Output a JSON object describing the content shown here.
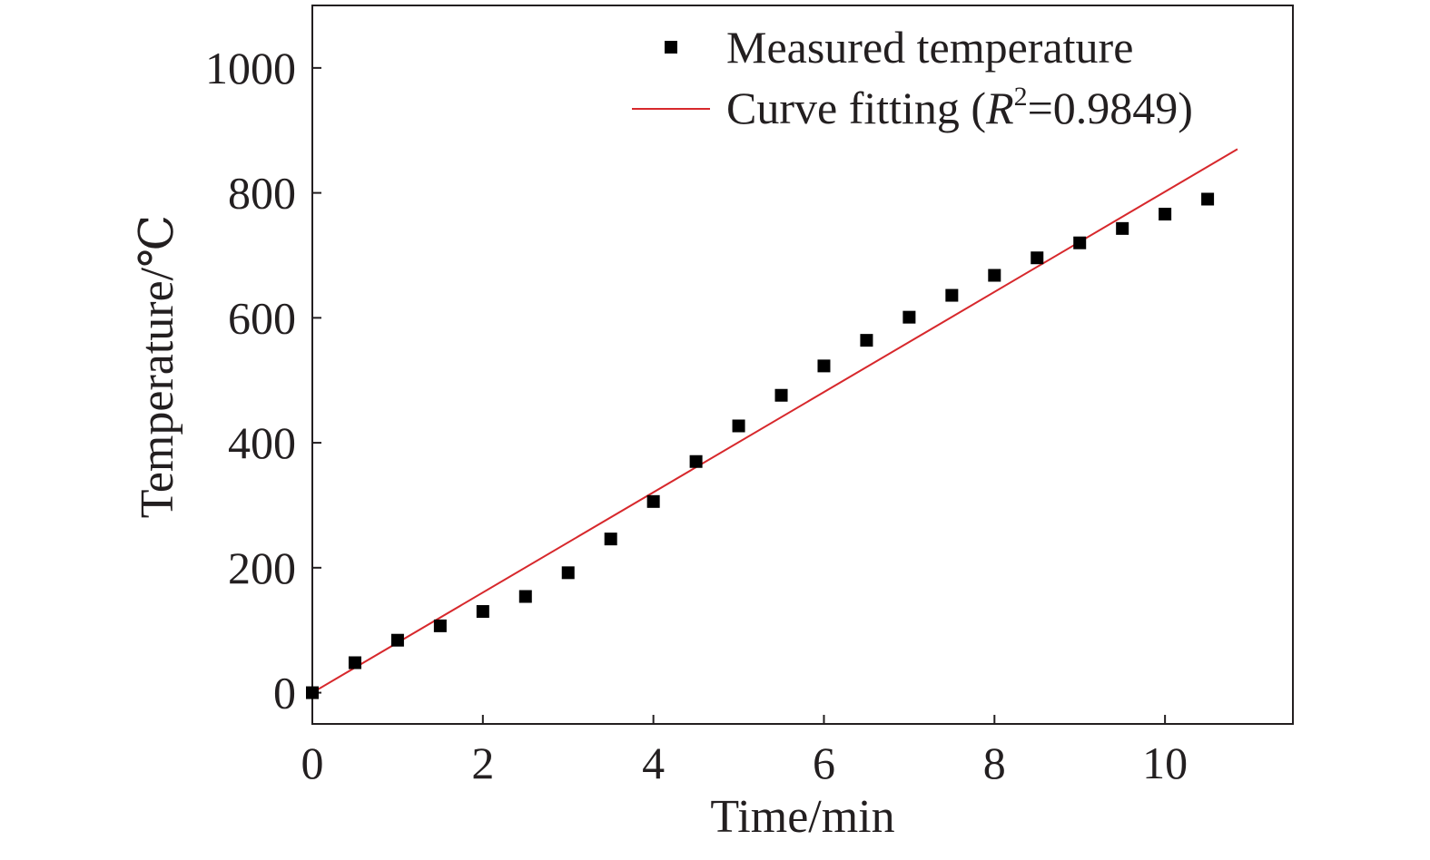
{
  "chart_data": {
    "type": "scatter",
    "xlabel": "Time/min",
    "ylabel": "Temperature/℃",
    "xlim": [
      0,
      11.5
    ],
    "ylim": [
      -50,
      1100
    ],
    "xticks": [
      0,
      2,
      4,
      6,
      8,
      10
    ],
    "yticks": [
      0,
      200,
      400,
      600,
      800,
      1000
    ],
    "grid": false,
    "legend_position": "top-right",
    "series": [
      {
        "name": "Measured temperature",
        "kind": "scatter",
        "marker": "square",
        "color": "#000000",
        "x": [
          0,
          0.5,
          1,
          1.5,
          2,
          2.5,
          3,
          3.5,
          4,
          4.5,
          5,
          5.5,
          6,
          6.5,
          7,
          7.5,
          8,
          8.5,
          9,
          9.5,
          10,
          10.5
        ],
        "y": [
          0,
          48,
          84,
          107,
          130,
          154,
          192,
          246,
          306,
          370,
          427,
          476,
          523,
          564,
          601,
          636,
          668,
          696,
          720,
          743,
          766,
          790
        ]
      },
      {
        "name": "Curve fitting",
        "name_suffix_r2": "0.9849",
        "kind": "line",
        "color": "#d7282c",
        "x": [
          0,
          10.85
        ],
        "y": [
          0,
          870
        ]
      }
    ],
    "legend": {
      "measured_label": "Measured temperature",
      "fit_prefix": "Curve fitting (",
      "r_symbol": "R",
      "r_sup": "2",
      "fit_suffix": "=0.9849)"
    }
  }
}
